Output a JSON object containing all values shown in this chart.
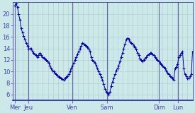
{
  "background_color": "#cce8e8",
  "line_color": "#0000bb",
  "marker_color": "#0000bb",
  "grid_color": "#aacccc",
  "axis_color": "#4444aa",
  "ylim": [
    5,
    22
  ],
  "yticks": [
    6,
    8,
    10,
    12,
    14,
    16,
    18,
    20
  ],
  "day_labels": [
    "Mer",
    "Jeu",
    "Ven",
    "Sam",
    "Dim",
    "Lun"
  ],
  "day_positions": [
    0,
    14,
    60,
    96,
    150,
    170
  ],
  "xlim": [
    -2,
    185
  ],
  "temperatures": [
    21.5,
    21.8,
    21.2,
    20.0,
    19.0,
    17.5,
    16.8,
    16.2,
    15.5,
    15.0,
    14.5,
    14.0,
    13.9,
    14.0,
    13.5,
    13.2,
    13.0,
    12.8,
    12.5,
    12.8,
    13.2,
    12.8,
    12.5,
    12.3,
    12.2,
    12.0,
    11.8,
    11.5,
    11.0,
    10.5,
    10.2,
    10.0,
    9.8,
    9.5,
    9.3,
    9.1,
    9.0,
    8.8,
    8.7,
    8.5,
    8.8,
    9.0,
    9.2,
    9.5,
    10.0,
    10.5,
    11.0,
    11.5,
    12.0,
    12.5,
    13.0,
    13.5,
    14.0,
    14.5,
    15.0,
    14.8,
    14.6,
    14.4,
    14.2,
    14.0,
    13.5,
    12.5,
    12.0,
    11.8,
    11.5,
    11.0,
    10.5,
    10.0,
    9.5,
    9.0,
    8.5,
    7.8,
    7.0,
    6.5,
    6.2,
    6.0,
    6.5,
    7.5,
    8.2,
    8.8,
    9.5,
    10.2,
    10.5,
    11.0,
    11.8,
    12.5,
    13.2,
    14.0,
    14.8,
    15.5,
    15.8,
    15.5,
    15.2,
    15.0,
    14.8,
    14.5,
    14.2,
    13.8,
    13.2,
    12.8,
    12.2,
    12.0,
    11.8,
    12.0,
    12.2,
    12.5,
    12.8,
    13.0,
    13.2,
    13.2,
    13.0,
    12.8,
    12.5,
    12.2,
    12.0,
    11.8,
    11.5,
    11.2,
    11.0,
    10.8,
    10.5,
    10.2,
    9.8,
    9.5,
    9.2,
    9.0,
    8.8,
    8.5,
    10.5,
    10.8,
    11.2,
    12.5,
    12.8,
    13.2,
    13.5,
    10.5,
    9.5,
    9.2,
    8.8,
    8.8,
    9.2,
    9.5,
    13.5
  ]
}
